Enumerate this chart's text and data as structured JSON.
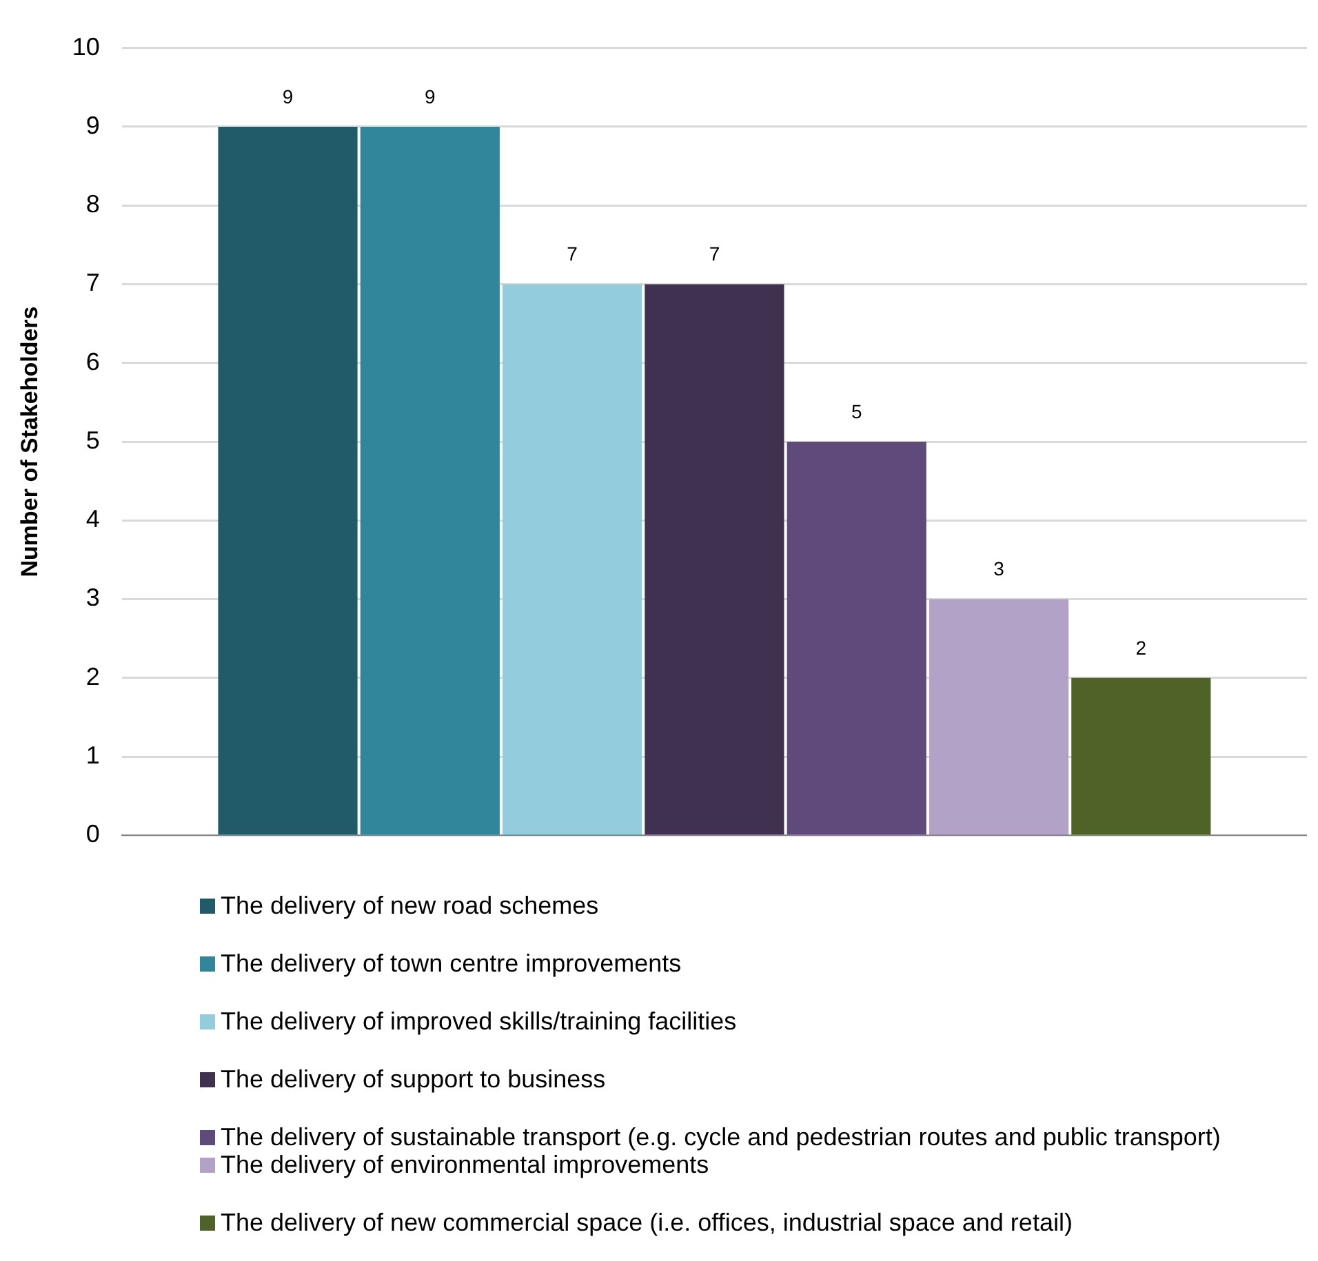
{
  "chart_data": {
    "type": "bar",
    "ylabel": "Number of Stakeholders",
    "categories": [
      null
    ],
    "series": [
      {
        "name": "The delivery of new road schemes",
        "color": "#215a68",
        "values": [
          9
        ]
      },
      {
        "name": "The delivery of town centre improvements",
        "color": "#31869b",
        "values": [
          9
        ]
      },
      {
        "name": "The delivery of improved skills/training facilities",
        "color": "#93cddd",
        "values": [
          7
        ]
      },
      {
        "name": "The delivery of support to business",
        "color": "#403151",
        "values": [
          7
        ]
      },
      {
        "name": "The delivery of sustainable transport (e.g. cycle and pedestrian routes and public transport)",
        "color": "#604a7b",
        "values": [
          5
        ]
      },
      {
        "name": "The delivery of environmental improvements",
        "color": "#b3a2c7",
        "values": [
          3
        ]
      },
      {
        "name": "The delivery of new commercial space (i.e. offices, industrial space and retail)",
        "color": "#4f6228",
        "values": [
          2
        ]
      }
    ],
    "ylim": [
      0,
      10
    ],
    "yticks": [
      0,
      1,
      2,
      3,
      4,
      5,
      6,
      7,
      8,
      9,
      10
    ],
    "grid": "y",
    "legend": "bottom",
    "data_labels": true
  }
}
